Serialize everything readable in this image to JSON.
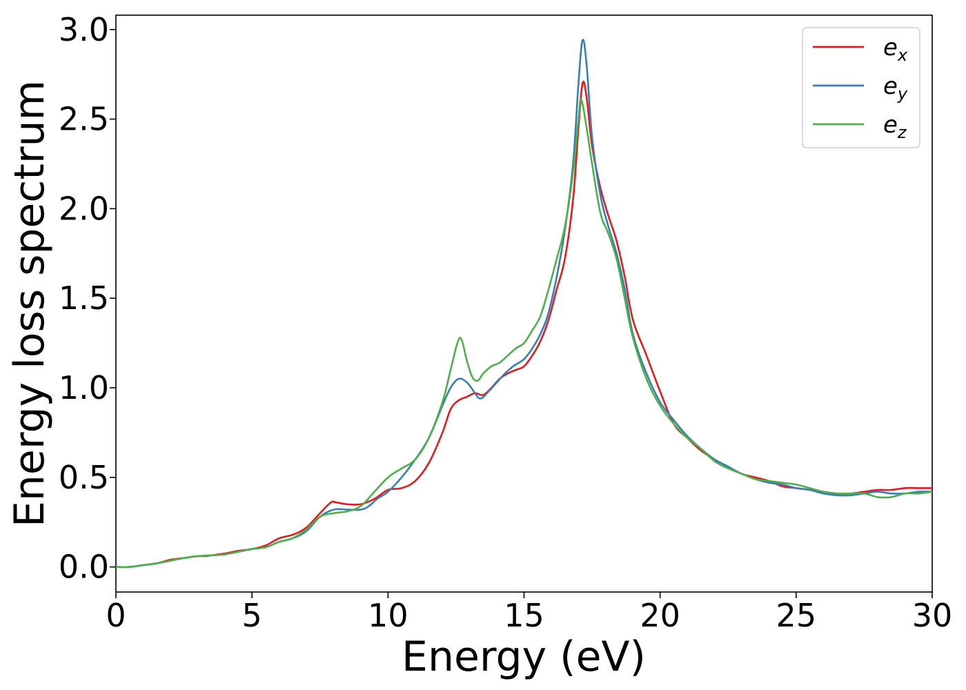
{
  "chart_data": {
    "type": "line",
    "title": "",
    "xlabel": "Energy (eV)",
    "ylabel": "Energy loss spectrum",
    "xlim": [
      0,
      30
    ],
    "ylim": [
      -0.14,
      3.08
    ],
    "xticks": [
      0,
      5,
      10,
      15,
      20,
      25,
      30
    ],
    "xtick_labels": [
      "0",
      "5",
      "10",
      "15",
      "20",
      "25",
      "30"
    ],
    "yticks": [
      0.0,
      0.5,
      1.0,
      1.5,
      2.0,
      2.5,
      3.0
    ],
    "ytick_labels": [
      "0.0",
      "0.5",
      "1.0",
      "1.5",
      "2.0",
      "2.5",
      "3.0"
    ],
    "grid": false,
    "legend_position": "top-right",
    "series": [
      {
        "name": "e_x",
        "legend_base": "e",
        "legend_sub": "x",
        "color": "#e41a1c",
        "x": [
          0,
          0.5,
          1,
          1.5,
          2,
          2.5,
          3,
          3.3,
          3.5,
          4,
          4.5,
          5,
          5.5,
          6,
          6.5,
          7,
          7.5,
          7.9,
          8.1,
          8.5,
          9,
          9.5,
          10,
          10.5,
          11,
          11.5,
          12,
          12.3,
          12.6,
          12.9,
          13.2,
          13.5,
          13.8,
          14.1,
          14.4,
          14.7,
          15,
          15.3,
          15.6,
          15.9,
          16.2,
          16.5,
          16.8,
          17,
          17.15,
          17.3,
          17.5,
          17.8,
          18.1,
          18.4,
          18.7,
          19,
          19.5,
          20,
          20.5,
          21,
          21.5,
          22,
          22.5,
          23,
          23.5,
          24,
          24.5,
          25,
          25.5,
          26,
          26.5,
          27,
          27.5,
          28,
          28.5,
          29,
          29.5,
          30
        ],
        "y": [
          0.0,
          0.0,
          0.01,
          0.02,
          0.04,
          0.05,
          0.06,
          0.06,
          0.065,
          0.075,
          0.09,
          0.1,
          0.12,
          0.16,
          0.18,
          0.22,
          0.3,
          0.36,
          0.36,
          0.35,
          0.35,
          0.38,
          0.43,
          0.44,
          0.48,
          0.58,
          0.75,
          0.88,
          0.93,
          0.95,
          0.97,
          0.96,
          1.0,
          1.05,
          1.08,
          1.1,
          1.12,
          1.18,
          1.26,
          1.38,
          1.55,
          1.72,
          2.05,
          2.45,
          2.7,
          2.62,
          2.35,
          2.12,
          1.96,
          1.82,
          1.62,
          1.38,
          1.18,
          0.98,
          0.8,
          0.72,
          0.65,
          0.6,
          0.56,
          0.52,
          0.5,
          0.48,
          0.45,
          0.44,
          0.43,
          0.42,
          0.41,
          0.41,
          0.42,
          0.43,
          0.43,
          0.44,
          0.44,
          0.44
        ]
      },
      {
        "name": "e_y",
        "legend_base": "e",
        "legend_sub": "y",
        "color": "#377eb8",
        "x": [
          0,
          0.5,
          1,
          1.5,
          2,
          2.5,
          3,
          3.5,
          4,
          4.5,
          5,
          5.5,
          6,
          6.5,
          7,
          7.5,
          8,
          8.5,
          9,
          9.3,
          9.6,
          10,
          10.5,
          11,
          11.5,
          12,
          12.3,
          12.6,
          12.9,
          13.2,
          13.4,
          13.7,
          14,
          14.3,
          14.6,
          15,
          15.3,
          15.6,
          15.9,
          16.2,
          16.5,
          16.8,
          17,
          17.15,
          17.3,
          17.5,
          17.8,
          18.1,
          18.4,
          18.7,
          19,
          19.5,
          20,
          20.5,
          21,
          21.5,
          22,
          22.5,
          23,
          23.5,
          24,
          24.5,
          25,
          25.5,
          26,
          26.5,
          27,
          27.5,
          28,
          28.5,
          29,
          29.5,
          30
        ],
        "y": [
          0.0,
          0.0,
          0.01,
          0.02,
          0.035,
          0.05,
          0.06,
          0.065,
          0.07,
          0.085,
          0.1,
          0.11,
          0.14,
          0.16,
          0.2,
          0.28,
          0.32,
          0.32,
          0.32,
          0.34,
          0.38,
          0.42,
          0.5,
          0.6,
          0.72,
          0.9,
          1.0,
          1.05,
          1.03,
          0.97,
          0.94,
          0.98,
          1.03,
          1.08,
          1.12,
          1.16,
          1.22,
          1.3,
          1.42,
          1.62,
          1.88,
          2.25,
          2.7,
          2.94,
          2.8,
          2.4,
          2.08,
          1.9,
          1.75,
          1.55,
          1.3,
          1.08,
          0.92,
          0.82,
          0.73,
          0.66,
          0.6,
          0.56,
          0.52,
          0.49,
          0.47,
          0.46,
          0.44,
          0.43,
          0.41,
          0.4,
          0.4,
          0.41,
          0.42,
          0.41,
          0.41,
          0.42,
          0.42
        ]
      },
      {
        "name": "e_z",
        "legend_base": "e",
        "legend_sub": "z",
        "color": "#4daf4a",
        "x": [
          0,
          0.5,
          1,
          1.5,
          2,
          2.5,
          3,
          3.5,
          4,
          4.5,
          5,
          5.5,
          6,
          6.5,
          7,
          7.5,
          8,
          8.5,
          9,
          9.5,
          10,
          10.5,
          11,
          11.5,
          12,
          12.3,
          12.55,
          12.7,
          12.9,
          13.1,
          13.3,
          13.5,
          13.8,
          14.1,
          14.4,
          14.7,
          15,
          15.3,
          15.6,
          15.9,
          16.2,
          16.5,
          16.8,
          17,
          17.1,
          17.3,
          17.5,
          17.8,
          18.1,
          18.4,
          18.7,
          19,
          19.5,
          20,
          20.5,
          21,
          21.5,
          22,
          22.5,
          23,
          23.5,
          24,
          24.5,
          25,
          25.5,
          26,
          26.5,
          27,
          27.5,
          28,
          28.5,
          29,
          29.5,
          30
        ],
        "y": [
          0.0,
          0.0,
          0.01,
          0.02,
          0.035,
          0.05,
          0.06,
          0.065,
          0.07,
          0.085,
          0.1,
          0.11,
          0.14,
          0.16,
          0.21,
          0.28,
          0.3,
          0.31,
          0.34,
          0.42,
          0.5,
          0.55,
          0.6,
          0.72,
          0.92,
          1.1,
          1.25,
          1.27,
          1.15,
          1.06,
          1.04,
          1.08,
          1.12,
          1.14,
          1.18,
          1.22,
          1.25,
          1.32,
          1.4,
          1.55,
          1.72,
          1.9,
          2.2,
          2.5,
          2.61,
          2.45,
          2.25,
          1.98,
          1.86,
          1.72,
          1.5,
          1.28,
          1.05,
          0.9,
          0.8,
          0.72,
          0.66,
          0.59,
          0.55,
          0.52,
          0.49,
          0.48,
          0.47,
          0.46,
          0.44,
          0.42,
          0.41,
          0.41,
          0.41,
          0.39,
          0.39,
          0.41,
          0.41,
          0.42
        ]
      }
    ]
  }
}
